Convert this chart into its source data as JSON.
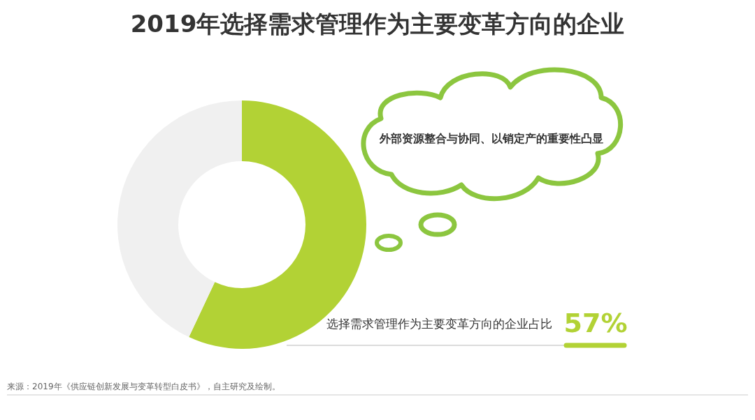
{
  "chart_data": {
    "type": "donut",
    "title": "2019年选择需求管理作为主要变革方向的企业",
    "categories": [
      "选择需求管理作为主要变革方向的企业占比",
      null
    ],
    "values": [
      57,
      43
    ],
    "colors": [
      "#b2d235",
      "#f0f0f0"
    ],
    "value_labels": [
      "57%",
      null
    ],
    "annotations": [
      "外部资源整合与协同、以销定产的重要性凸显",
      "来源：2019年《供应链创新发展与变革转型白皮书》，自主研究及绘制。"
    ]
  }
}
